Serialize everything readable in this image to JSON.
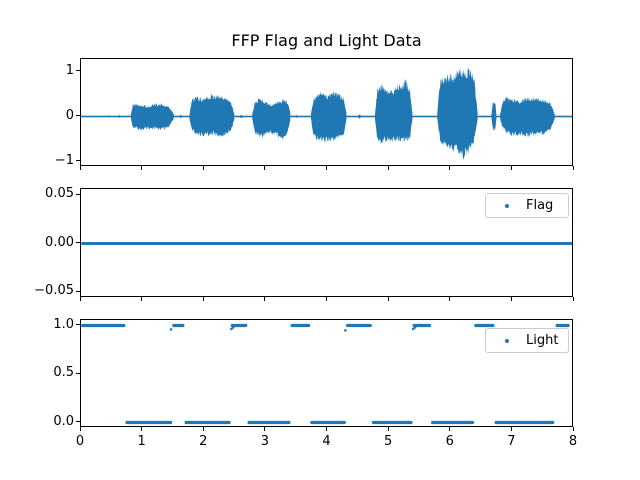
{
  "figure": {
    "title": "FFP Flag and Light Data",
    "background": "#ffffff",
    "accent_color": "#1f77b4",
    "spine_color": "#000000",
    "legend_border_color": "#cccccc"
  },
  "x_axis": {
    "range": [
      0,
      8
    ],
    "tick_values": [
      0,
      1,
      2,
      3,
      4,
      5,
      6,
      7,
      8
    ],
    "tick_labels": [
      "0",
      "1",
      "2",
      "3",
      "4",
      "5",
      "6",
      "7",
      "8"
    ]
  },
  "chart_data": [
    {
      "type": "line",
      "name": "waveform",
      "title": "FFP Flag and Light Data",
      "xlim": [
        0,
        8
      ],
      "ylim": [
        -1.12,
        1.29
      ],
      "y_tick_values": [
        1,
        0,
        -1
      ],
      "y_tick_labels": [
        "1",
        "0",
        "−1"
      ],
      "grid": false,
      "baseline_amplitude": 0.018,
      "blips": [
        [
          0.45,
          0.025
        ],
        [
          0.62,
          0.03
        ],
        [
          1.62,
          0.035
        ],
        [
          2.6,
          0.04
        ],
        [
          3.5,
          0.03
        ],
        [
          4.52,
          0.05
        ],
        [
          7.78,
          0.02
        ]
      ],
      "bursts": [
        {
          "envelope": [
            [
              0.81,
              0.04,
              -0.04
            ],
            [
              0.84,
              0.26,
              -0.24
            ],
            [
              0.9,
              0.28,
              -0.27
            ],
            [
              1.0,
              0.24,
              -0.3
            ],
            [
              1.08,
              0.21,
              -0.25
            ],
            [
              1.18,
              0.26,
              -0.26
            ],
            [
              1.3,
              0.27,
              -0.28
            ],
            [
              1.42,
              0.22,
              -0.24
            ],
            [
              1.48,
              0.12,
              -0.12
            ],
            [
              1.51,
              0.03,
              -0.03
            ]
          ]
        },
        {
          "envelope": [
            [
              1.76,
              0.05,
              -0.05
            ],
            [
              1.8,
              0.35,
              -0.3
            ],
            [
              1.88,
              0.42,
              -0.38
            ],
            [
              1.98,
              0.38,
              -0.42
            ],
            [
              2.05,
              0.44,
              -0.4
            ],
            [
              2.15,
              0.47,
              -0.38
            ],
            [
              2.25,
              0.42,
              -0.42
            ],
            [
              2.35,
              0.4,
              -0.38
            ],
            [
              2.44,
              0.3,
              -0.3
            ],
            [
              2.49,
              0.05,
              -0.05
            ]
          ]
        },
        {
          "envelope": [
            [
              2.78,
              0.05,
              -0.05
            ],
            [
              2.82,
              0.32,
              -0.35
            ],
            [
              2.9,
              0.38,
              -0.45
            ],
            [
              3.0,
              0.3,
              -0.4
            ],
            [
              3.08,
              0.25,
              -0.35
            ],
            [
              3.18,
              0.3,
              -0.42
            ],
            [
              3.28,
              0.38,
              -0.48
            ],
            [
              3.35,
              0.33,
              -0.35
            ],
            [
              3.4,
              0.05,
              -0.05
            ]
          ]
        },
        {
          "envelope": [
            [
              3.73,
              0.05,
              -0.05
            ],
            [
              3.78,
              0.4,
              -0.45
            ],
            [
              3.88,
              0.5,
              -0.52
            ],
            [
              3.98,
              0.45,
              -0.55
            ],
            [
              4.08,
              0.52,
              -0.5
            ],
            [
              4.18,
              0.45,
              -0.48
            ],
            [
              4.26,
              0.4,
              -0.4
            ],
            [
              4.31,
              0.05,
              -0.05
            ]
          ]
        },
        {
          "envelope": [
            [
              4.77,
              0.05,
              -0.05
            ],
            [
              4.81,
              0.6,
              -0.55
            ],
            [
              4.88,
              0.65,
              -0.58
            ],
            [
              4.97,
              0.55,
              -0.5
            ],
            [
              5.06,
              0.58,
              -0.52
            ],
            [
              5.16,
              0.7,
              -0.5
            ],
            [
              5.27,
              0.75,
              -0.52
            ],
            [
              5.34,
              0.6,
              -0.45
            ],
            [
              5.38,
              0.04,
              -0.04
            ]
          ]
        },
        {
          "envelope": [
            [
              5.78,
              0.05,
              -0.05
            ],
            [
              5.83,
              0.82,
              -0.55
            ],
            [
              5.92,
              0.88,
              -0.62
            ],
            [
              6.02,
              0.86,
              -0.68
            ],
            [
              6.12,
              0.98,
              -0.78
            ],
            [
              6.22,
              0.96,
              -0.87
            ],
            [
              6.3,
              1.0,
              -0.75
            ],
            [
              6.38,
              0.8,
              -0.5
            ],
            [
              6.44,
              0.05,
              -0.05
            ]
          ]
        },
        {
          "envelope": [
            [
              6.66,
              0.03,
              -0.03
            ],
            [
              6.68,
              0.3,
              -0.28
            ],
            [
              6.72,
              0.32,
              -0.3
            ],
            [
              6.74,
              0.05,
              -0.05
            ]
          ]
        },
        {
          "envelope": [
            [
              6.8,
              0.04,
              -0.04
            ],
            [
              6.84,
              0.3,
              -0.25
            ],
            [
              6.9,
              0.43,
              -0.35
            ],
            [
              7.0,
              0.35,
              -0.4
            ],
            [
              7.1,
              0.33,
              -0.38
            ],
            [
              7.2,
              0.38,
              -0.42
            ],
            [
              7.35,
              0.4,
              -0.4
            ],
            [
              7.5,
              0.36,
              -0.38
            ],
            [
              7.62,
              0.3,
              -0.3
            ],
            [
              7.69,
              0.03,
              -0.03
            ]
          ]
        }
      ]
    },
    {
      "type": "scatter",
      "name": "flag",
      "legend": "Flag",
      "xlim": [
        0,
        8
      ],
      "ylim": [
        -0.0562,
        0.0562
      ],
      "y_tick_values": [
        0.05,
        0,
        -0.05
      ],
      "y_tick_labels": [
        "0.05",
        "0.00",
        "−0.05"
      ],
      "grid": false,
      "legend_position": "upper right",
      "constant_value": 0.0,
      "x_extent": [
        0,
        8
      ]
    },
    {
      "type": "scatter",
      "name": "light",
      "legend": "Light",
      "xlim": [
        0,
        8
      ],
      "ylim": [
        -0.068,
        1.045
      ],
      "y_tick_values": [
        1.0,
        0.5,
        0.0
      ],
      "y_tick_labels": [
        "1.0",
        "0.5",
        "0.0"
      ],
      "grid": false,
      "legend_position": "upper right",
      "segments": [
        {
          "y": 1,
          "x0": 0.0,
          "x1": 0.72
        },
        {
          "y": 0,
          "x0": 0.72,
          "x1": 1.48
        },
        {
          "y": 1,
          "x0": 1.48,
          "x1": 1.68
        },
        {
          "y": 0,
          "x0": 1.68,
          "x1": 2.43
        },
        {
          "y": 1,
          "x0": 2.43,
          "x1": 2.7
        },
        {
          "y": 0,
          "x0": 2.7,
          "x1": 3.4
        },
        {
          "y": 1,
          "x0": 3.4,
          "x1": 3.72
        },
        {
          "y": 0,
          "x0": 3.72,
          "x1": 4.3
        },
        {
          "y": 1,
          "x0": 4.3,
          "x1": 4.72
        },
        {
          "y": 0,
          "x0": 4.72,
          "x1": 5.38
        },
        {
          "y": 1,
          "x0": 5.38,
          "x1": 5.68
        },
        {
          "y": 0,
          "x0": 5.68,
          "x1": 6.38
        },
        {
          "y": 1,
          "x0": 6.38,
          "x1": 6.71
        },
        {
          "y": 0,
          "x0": 6.71,
          "x1": 7.68
        },
        {
          "y": 1,
          "x0": 7.7,
          "x1": 7.93
        }
      ],
      "stray_dots": [
        [
          1.46,
          0.96
        ],
        [
          4.29,
          0.95
        ],
        [
          2.44,
          0.965
        ],
        [
          2.47,
          0.98
        ],
        [
          5.39,
          0.965
        ],
        [
          5.42,
          0.98
        ]
      ]
    }
  ]
}
